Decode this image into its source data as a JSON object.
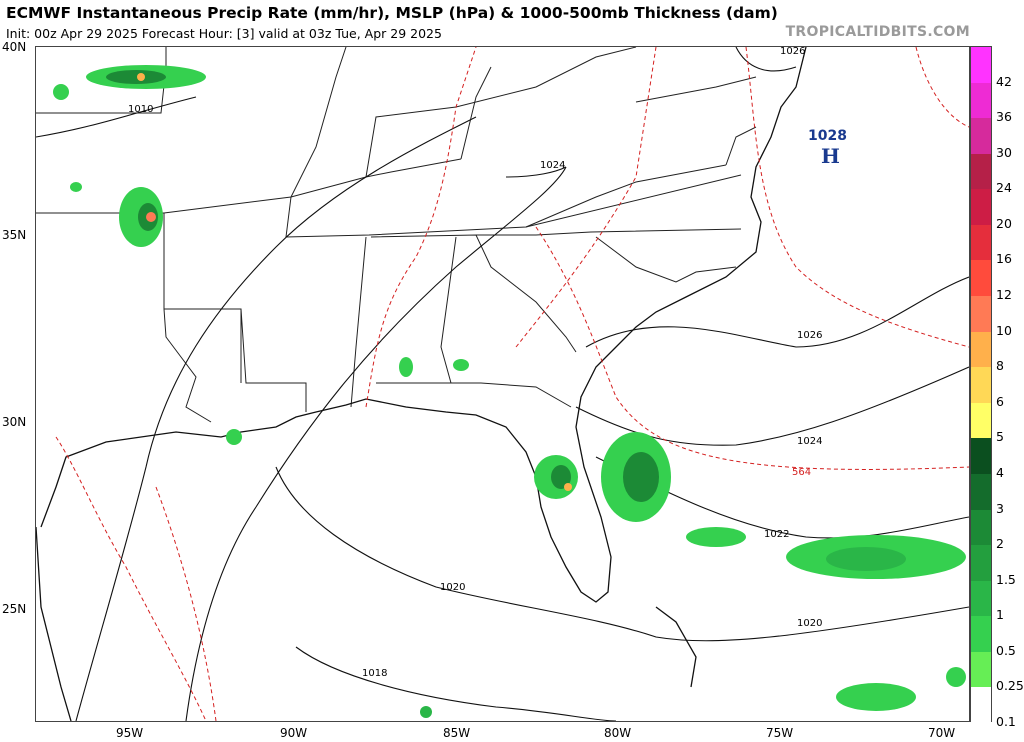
{
  "header": {
    "title": "ECMWF Instantaneous Precip Rate (mm/hr), MSLP (hPa) & 1000-500mb Thickness (dam)",
    "subtitle": "Init: 00z Apr 29 2025   Forecast Hour: [3]   valid at 03z Tue, Apr 29 2025",
    "credit": "TROPICALTIDBITS.COM"
  },
  "axes": {
    "lat_labels": [
      "40N",
      "35N",
      "30N",
      "25N"
    ],
    "lon_labels": [
      "95W",
      "90W",
      "85W",
      "80W",
      "75W",
      "70W"
    ]
  },
  "pressure_center": {
    "value": "1028",
    "letter": "H"
  },
  "isobar_labels": [
    "1026",
    "1010",
    "1024",
    "1026",
    "1024",
    "1022",
    "1020",
    "1020",
    "1018"
  ],
  "thickness_label": "564",
  "colorbar": {
    "labels": [
      "42",
      "36",
      "30",
      "24",
      "20",
      "16",
      "12",
      "10",
      "8",
      "6",
      "5",
      "4",
      "3",
      "2",
      "1.5",
      "1",
      "0.5",
      "0.25",
      "0.1"
    ],
    "colors": [
      "#ff33ff",
      "#ee2bd4",
      "#d62a9c",
      "#b52048",
      "#cd1d45",
      "#e52e3c",
      "#ff4b3c",
      "#ff7a55",
      "#ffb04b",
      "#ffd856",
      "#ffff66",
      "#0b4f1f",
      "#146c2c",
      "#1c8a36",
      "#239f3e",
      "#2ab648",
      "#35d04f",
      "#66ee55",
      "#ffffff"
    ]
  }
}
